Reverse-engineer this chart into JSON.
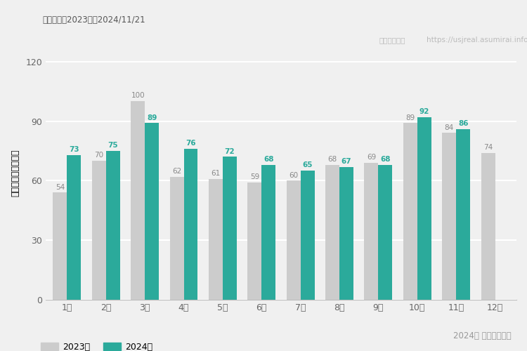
{
  "months": [
    "1月",
    "2月",
    "3月",
    "4月",
    "5月",
    "6月",
    "7月",
    "8月",
    "9月",
    "10月",
    "11月",
    "12月"
  ],
  "values_2023": [
    54,
    70,
    100,
    62,
    61,
    59,
    60,
    68,
    69,
    89,
    84,
    74
  ],
  "values_2024": [
    73,
    75,
    89,
    76,
    72,
    68,
    65,
    67,
    68,
    92,
    86,
    null
  ],
  "color_2023": "#cccccc",
  "color_2024": "#2baa9b",
  "ylabel": "平均待ち時間（分）",
  "yticks": [
    0,
    30,
    60,
    90,
    120
  ],
  "ylim": [
    0,
    128
  ],
  "title_top_left": "集計期間：2023年〜2024/11/21",
  "watermark_left": "ユニバリアル",
  "watermark_right": "https://usjreal.asumirai.info",
  "legend_2023": "2023年",
  "legend_2024": "2024年",
  "caption_right": "2024年 平均待ち時間",
  "bar_width": 0.36,
  "label_fontsize": 7.5,
  "tick_fontsize": 9,
  "ylabel_fontsize": 9,
  "background_color": "#f0f0f0",
  "plot_bg_color": "#f0f0f0",
  "grid_color": "#ffffff"
}
